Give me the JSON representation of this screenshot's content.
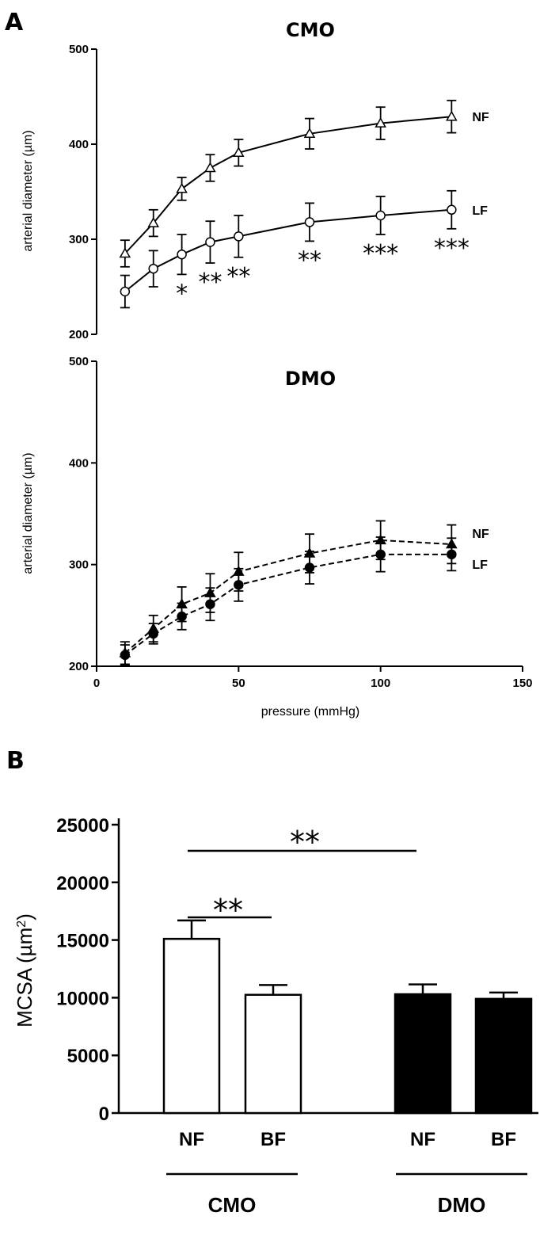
{
  "panel_a_label": "A",
  "panel_b_label": "B",
  "chart_data": [
    {
      "type": "line",
      "title": "CMO",
      "xlabel": "",
      "ylabel": "arterial diameter (µm)",
      "ylim": [
        200,
        500
      ],
      "xlim": [
        0,
        150
      ],
      "yticks": [
        "500",
        "400",
        "300",
        "200"
      ],
      "series": [
        {
          "name": "NF",
          "marker": "open-triangle",
          "line": "solid",
          "x": [
            10,
            20,
            30,
            40,
            50,
            75,
            100,
            125
          ],
          "y": [
            285,
            317,
            353,
            375,
            391,
            411,
            422,
            429
          ],
          "err": [
            14,
            14,
            12,
            14,
            14,
            16,
            17,
            17
          ]
        },
        {
          "name": "LF",
          "marker": "open-circle",
          "line": "solid",
          "x": [
            10,
            20,
            30,
            40,
            50,
            75,
            100,
            125
          ],
          "y": [
            245,
            269,
            284,
            297,
            303,
            318,
            325,
            331
          ],
          "err": [
            17,
            19,
            21,
            22,
            22,
            20,
            20,
            20
          ]
        }
      ],
      "annotations": [
        {
          "text": "*",
          "x": 30
        },
        {
          "text": "**",
          "x": 40
        },
        {
          "text": "**",
          "x": 50
        },
        {
          "text": "**",
          "x": 75
        },
        {
          "text": "***",
          "x": 100
        },
        {
          "text": "***",
          "x": 125
        }
      ]
    },
    {
      "type": "line",
      "title": "DMO",
      "xlabel": "pressure (mmHg)",
      "ylabel": "arterial diameter (µm)",
      "ylim": [
        200,
        500
      ],
      "xlim": [
        0,
        150
      ],
      "yticks": [
        "500",
        "400",
        "300",
        "200"
      ],
      "xticks": [
        "0",
        "50",
        "100",
        "150"
      ],
      "series": [
        {
          "name": "NF",
          "marker": "filled-triangle",
          "line": "dashed",
          "x": [
            10,
            20,
            30,
            40,
            50,
            75,
            100,
            125
          ],
          "y": [
            213,
            237,
            261,
            272,
            293,
            311,
            324,
            320
          ],
          "err": [
            11,
            13,
            17,
            19,
            19,
            19,
            19,
            19
          ]
        },
        {
          "name": "LF",
          "marker": "filled-circle",
          "line": "dashed",
          "x": [
            10,
            20,
            30,
            40,
            50,
            75,
            100,
            125
          ],
          "y": [
            211,
            232,
            249,
            261,
            280,
            297,
            310,
            310
          ],
          "err": [
            10,
            10,
            13,
            16,
            16,
            16,
            17,
            16
          ]
        }
      ]
    },
    {
      "type": "bar",
      "title": "",
      "ylabel": "MCSA (µm",
      "ylabel_sup": "2",
      "ylabel_end": ")",
      "ylim": [
        0,
        25000
      ],
      "yticks": [
        "25000",
        "20000",
        "15000",
        "10000",
        "5000",
        "0"
      ],
      "categories": [
        "NF",
        "BF",
        "NF",
        "BF"
      ],
      "groups": [
        "CMO",
        "DMO"
      ],
      "values": [
        15100,
        10250,
        10300,
        9900
      ],
      "err": [
        1600,
        850,
        850,
        550
      ],
      "fills": [
        "#ffffff",
        "#ffffff",
        "#000000",
        "#000000"
      ],
      "significance": [
        {
          "text": "**",
          "from": 0,
          "to": 1
        },
        {
          "text": "**",
          "from": 0,
          "to": 2
        }
      ]
    }
  ]
}
